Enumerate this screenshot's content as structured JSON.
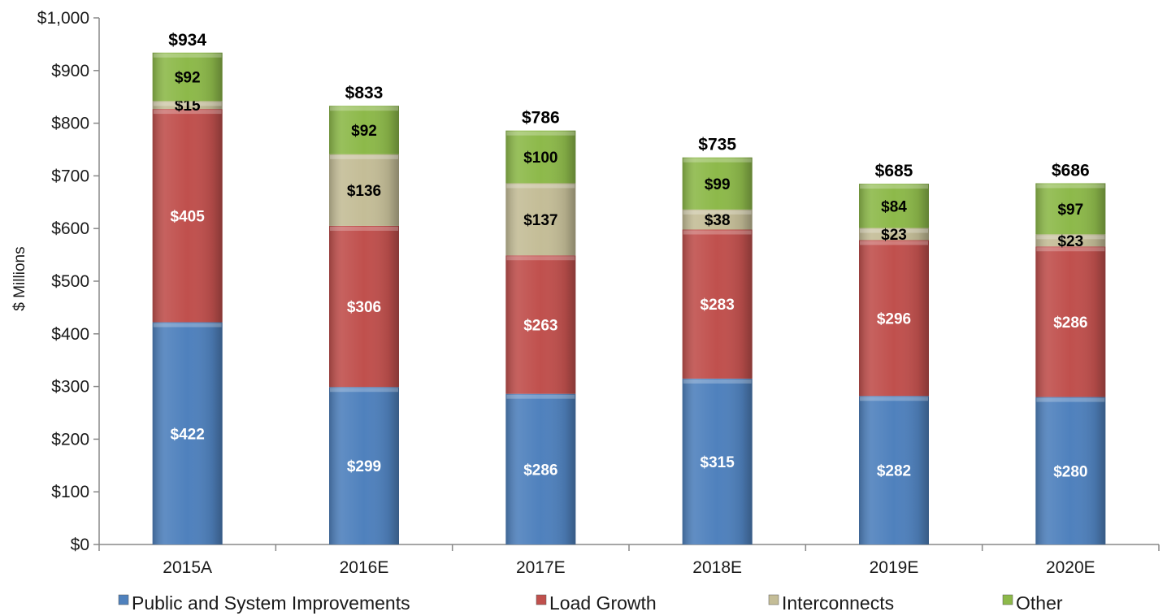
{
  "chart_data": {
    "type": "bar",
    "stacked": true,
    "title": "",
    "xlabel": "",
    "ylabel": "$ Millions",
    "ylim": [
      0,
      1000
    ],
    "yticks": [
      0,
      100,
      200,
      300,
      400,
      500,
      600,
      700,
      800,
      900,
      1000
    ],
    "ytick_labels": [
      "$0",
      "$100",
      "$200",
      "$300",
      "$400",
      "$500",
      "$600",
      "$700",
      "$800",
      "$900",
      "$1,000"
    ],
    "categories": [
      "2015A",
      "2016E",
      "2017E",
      "2018E",
      "2019E",
      "2020E"
    ],
    "series": [
      {
        "name": "Public and System Improvements",
        "color": "#4f81bd",
        "label_color": "#ffffff",
        "values": [
          422,
          299,
          286,
          315,
          282,
          280
        ],
        "labels": [
          "$422",
          "$299",
          "$286",
          "$315",
          "$282",
          "$280"
        ]
      },
      {
        "name": "Load Growth",
        "color": "#c0504d",
        "label_color": "#ffffff",
        "values": [
          405,
          306,
          263,
          283,
          296,
          286
        ],
        "labels": [
          "$405",
          "$306",
          "$263",
          "$283",
          "$296",
          "$286"
        ]
      },
      {
        "name": "Interconnects",
        "color": "#c4bd97",
        "label_color": "#000000",
        "values": [
          15,
          136,
          137,
          38,
          23,
          23
        ],
        "labels": [
          "$15",
          "$136",
          "$137",
          "$38",
          "$23",
          "$23"
        ]
      },
      {
        "name": "Other",
        "color": "#8db94a",
        "label_color": "#000000",
        "values": [
          92,
          92,
          100,
          99,
          84,
          97
        ],
        "labels": [
          "$92",
          "$92",
          "$100",
          "$99",
          "$84",
          "$97"
        ]
      }
    ],
    "totals": [
      934,
      833,
      786,
      735,
      685,
      686
    ],
    "total_labels": [
      "$934",
      "$833",
      "$786",
      "$735",
      "$685",
      "$686"
    ],
    "grid": false,
    "legend_position": "bottom"
  }
}
